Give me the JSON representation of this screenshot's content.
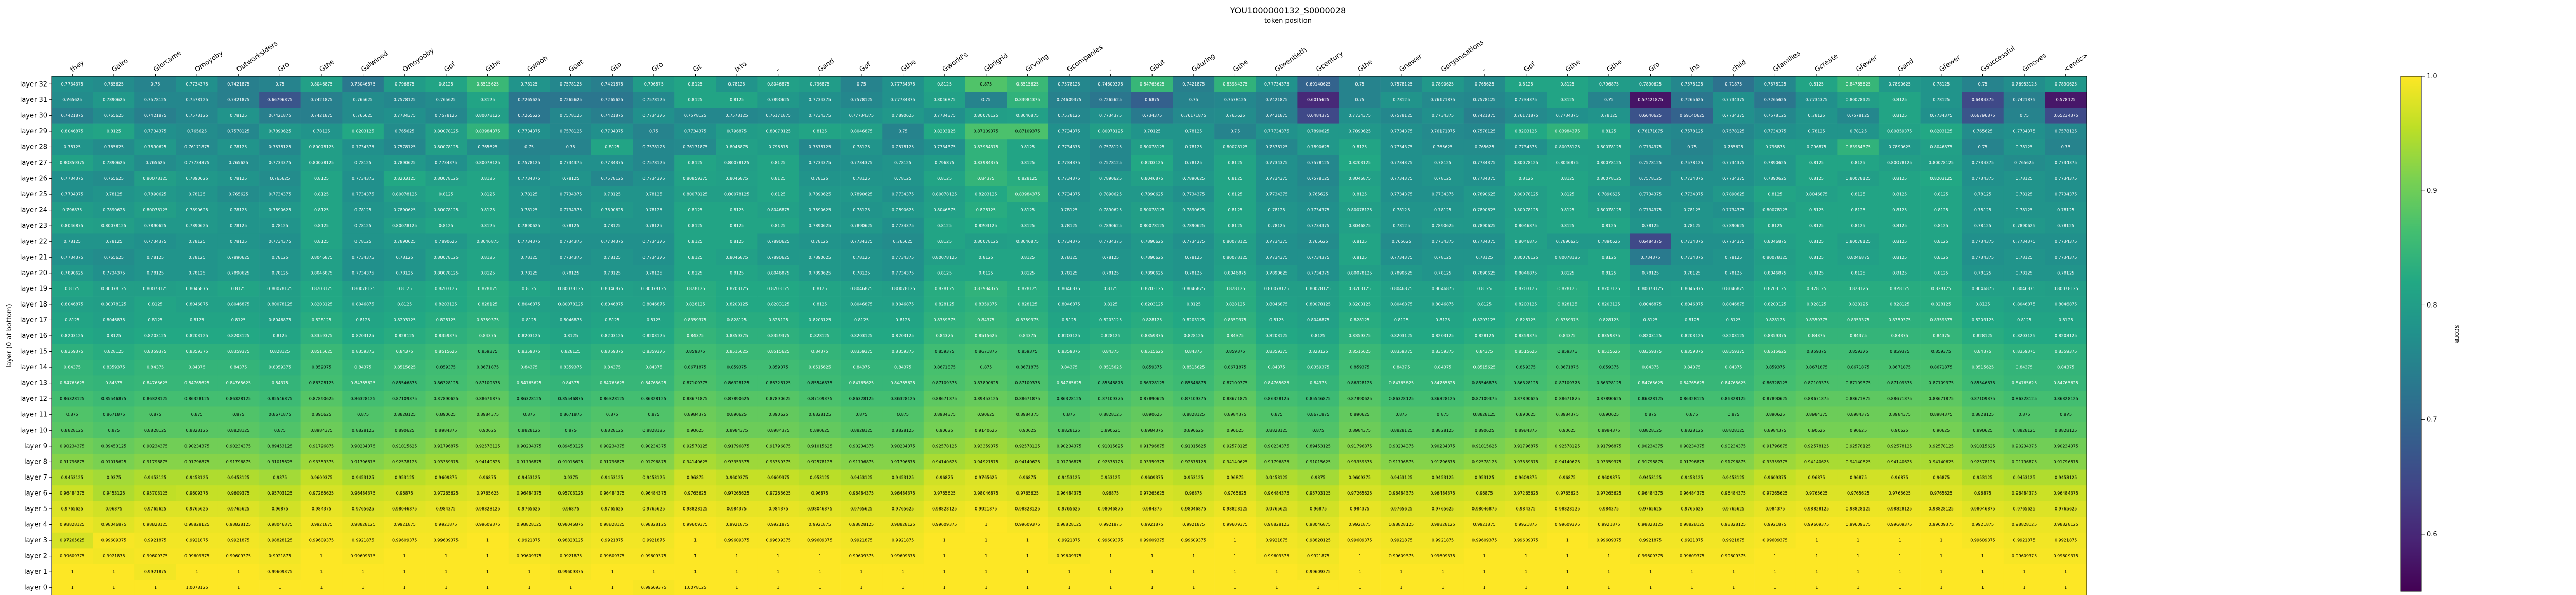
{
  "chart_data": {
    "type": "heatmap",
    "title": "YOU1000000132_S0000028",
    "xlabel": "token position",
    "ylabel": "layer (0 at bottom)",
    "colorbar_label": "score",
    "colormap": "viridis",
    "vmin": 0.55,
    "vmax": 1.0,
    "colorbar_ticks": [
      0.6,
      0.7,
      0.8,
      0.9,
      1.0
    ],
    "x_tokens": [
      "they",
      "Galro",
      "Glorcame",
      "Omoyoby",
      "Outworksiders",
      "Gro",
      "Gthe",
      "Galwined",
      "Omoyooby",
      "Gof",
      "Gthe",
      "Gwaoh",
      "Goet",
      "Gto",
      "Gro",
      "Gt",
      "Ixto",
      "-",
      "Gand",
      "Gof",
      "Gthe",
      "Gworld's",
      "Gbrigrid",
      "Grvoing",
      "Gcompanies",
      "-",
      "Gbut",
      "Gduring",
      "Gthe",
      "Gtwentieth",
      "Gcentury",
      "Gthe",
      "Gnewer",
      "Gorganisations",
      "-",
      "Gof",
      "Gthe",
      "Gthe",
      "Gro",
      "Ins",
      "child",
      "Gfamilies",
      "Gcreate",
      "Gfewer",
      "Gand",
      "Gfewer",
      "Gsuccessful",
      "Gmoves",
      "<endc>"
    ],
    "y_layers": [
      "layer 32",
      "layer 31",
      "layer 30",
      "layer 29",
      "layer 28",
      "layer 27",
      "layer 26",
      "layer 25",
      "layer 24",
      "layer 23",
      "layer 22",
      "layer 21",
      "layer 20",
      "layer 19",
      "layer 18",
      "layer 17",
      "layer 16",
      "layer 15",
      "layer 14",
      "layer 13",
      "layer 12",
      "layer 11",
      "layer 10",
      "layer 9",
      "layer 8",
      "layer 7",
      "layer 6",
      "layer 5",
      "layer 4",
      "layer 3",
      "layer 2",
      "layer 1",
      "layer 0"
    ],
    "row_data": [
      "0.7734375 0.765625 0.75 0.7734375 0.7421875 0.75 0.8046875 0.73046875 0.796875 0.8125 0.8515625 0.78125 0.7578125 0.7421875 0.796875 0.8125 0.78125 0.8046875 0.796875 0.75 0.77734375 0.8125 0.875 0.8515625 0.7578125 0.74609375 0.84765625 0.7421875 0.83984375 0.77734375 0.69140625 0.75 0.7578125 0.7890625 0.765625 0.8125 0.8125 0.796875 0.7890625 0.7578125 0.71875 0.7578125 0.8125 0.84765625 0.7890625 0.78125 0.75 0.76953125 0.7890625",
      "0.765625 0.7890625 0.7578125 0.7578125 0.7421875 0.66796875 0.7421875 0.765625 0.7578125 0.765625 0.8125 0.7265625 0.7265625 0.7265625 0.7578125 0.8125 0.8125 0.7890625 0.7734375 0.7578125 0.77734375 0.8046875 0.75 0.83984375 0.74609375 0.7265625 0.6875 0.75 0.7578125 0.7421875 0.6015625 0.75 0.78125 0.76171875 0.7578125 0.7734375 0.8125 0.75 0.57421875 0.7265625 0.7734375 0.7265625 0.7734375 0.80078125 0.8125 0.78125 0.6484375 0.7421875 0.578125",
      "0.7421875 0.765625 0.7421875 0.7578125 0.78125 0.7421875 0.7421875 0.765625 0.7734375 0.7578125 0.80078125 0.7265625 0.7578125 0.7421875 0.7734375 0.7578125 0.7578125 0.76171875 0.7734375 0.77734375 0.7890625 0.7734375 0.80078125 0.8046875 0.7578125 0.7734375 0.734375 0.76171875 0.765625 0.7421875 0.6484375 0.7734375 0.7578125 0.7734375 0.7421875 0.76171875 0.7734375 0.78125 0.6640625 0.69140625 0.7734375 0.7578125 0.78125 0.7578125 0.8125 0.7734375 0.66796875 0.75 0.65234375",
      "0.8046875 0.8125 0.7734375 0.765625 0.7578125 0.7890625 0.78125 0.8203125 0.765625 0.80078125 0.83984375 0.7734375 0.7578125 0.7734375 0.75 0.7734375 0.796875 0.80078125 0.8125 0.8046875 0.75 0.8203125 0.87109375 0.87109375 0.7734375 0.80078125 0.78125 0.78125 0.75 0.77734375 0.7890625 0.7890625 0.7734375 0.76171875 0.7578125 0.8203125 0.83984375 0.8125 0.76171875 0.7578125 0.7578125 0.7734375 0.78125 0.78125 0.80859375 0.8203125 0.765625 0.7734375 0.7578125",
      "0.78125 0.765625 0.7890625 0.76171875 0.78125 0.7578125 0.80078125 0.7734375 0.7578125 0.80078125 0.765625 0.75 0.75 0.8125 0.7578125 0.76171875 0.8046875 0.796875 0.7578125 0.78125 0.7578125 0.7734375 0.83984375 0.8125 0.7734375 0.7578125 0.80078125 0.78125 0.80078125 0.7578125 0.7890625 0.8125 0.7734375 0.765625 0.765625 0.7734375 0.80078125 0.80078125 0.7734375 0.75 0.765625 0.796875 0.796875 0.83984375 0.7890625 0.8046875 0.75 0.78125 0.75",
      "0.80859375 0.7890625 0.765625 0.77734375 0.765625 0.7734375 0.80078125 0.78125 0.7890625 0.7734375 0.80078125 0.7578125 0.7734375 0.7734375 0.7578125 0.8125 0.80078125 0.8125 0.7734375 0.7734375 0.78125 0.796875 0.83984375 0.8125 0.7734375 0.7578125 0.8203125 0.78125 0.8125 0.7734375 0.7578125 0.8203125 0.7734375 0.78125 0.7734375 0.80078125 0.8046875 0.80078125 0.7578125 0.7578125 0.7734375 0.7890625 0.8125 0.8125 0.80078125 0.80078125 0.7734375 0.765625 0.7734375",
      "0.7734375 0.765625 0.80078125 0.7890625 0.78125 0.765625 0.8125 0.7734375 0.8203125 0.80078125 0.8125 0.7734375 0.78125 0.7578125 0.7734375 0.80859375 0.8046875 0.8125 0.78125 0.78125 0.78125 0.8125 0.84375 0.828125 0.7734375 0.7890625 0.8046875 0.7890625 0.8125 0.7734375 0.7578125 0.8046875 0.7734375 0.78125 0.7734375 0.8125 0.8125 0.80078125 0.7578125 0.7734375 0.7734375 0.7890625 0.8125 0.80078125 0.8125 0.8203125 0.7734375 0.78125 0.7734375",
      "0.7734375 0.78125 0.7890625 0.78125 0.765625 0.7734375 0.8125 0.7734375 0.80078125 0.8125 0.8125 0.78125 0.7734375 0.78125 0.78125 0.80078125 0.80078125 0.8125 0.7890625 0.7890625 0.7734375 0.80078125 0.8203125 0.83984375 0.7734375 0.7890625 0.7890625 0.7734375 0.8125 0.7734375 0.765625 0.8125 0.7734375 0.7734375 0.7890625 0.80078125 0.8125 0.7890625 0.7734375 0.7734375 0.7890625 0.8125 0.8046875 0.8125 0.8125 0.8125 0.78125 0.78125 0.7734375",
      "0.796875 0.7890625 0.80078125 0.7890625 0.78125 0.7890625 0.8125 0.78125 0.7890625 0.80078125 0.8125 0.78125 0.7734375 0.7890625 0.78125 0.8125 0.8125 0.8046875 0.7890625 0.78125 0.7890625 0.8046875 0.828125 0.8125 0.78125 0.7890625 0.80078125 0.7890625 0.8125 0.78125 0.7734375 0.80078125 0.78125 0.78125 0.7890625 0.80078125 0.8125 0.80078125 0.7734375 0.78125 0.7734375 0.80078125 0.8125 0.8125 0.8125 0.8125 0.78125 0.78125 0.78125",
      "0.8046875 0.80078125 0.7890625 0.7890625 0.78125 0.78125 0.8125 0.78125 0.80078125 0.8125 0.8125 0.7890625 0.78125 0.78125 0.78125 0.8125 0.8125 0.8125 0.7890625 0.7890625 0.7734375 0.8125 0.8203125 0.8125 0.78125 0.7890625 0.80078125 0.7890625 0.8125 0.78125 0.7734375 0.8046875 0.78125 0.7890625 0.7890625 0.8046875 0.8125 0.8125 0.78125 0.78125 0.7890625 0.8125 0.8125 0.8125 0.8125 0.8125 0.78125 0.7890625 0.78125",
      "0.78125 0.78125 0.7734375 0.78125 0.78125 0.7734375 0.8125 0.78125 0.7890625 0.7890625 0.8046875 0.7734375 0.7734375 0.7734375 0.7734375 0.8125 0.8125 0.7890625 0.78125 0.7734375 0.765625 0.8125 0.80078125 0.8046875 0.7734375 0.7734375 0.7890625 0.7734375 0.80078125 0.7734375 0.765625 0.8125 0.765625 0.7734375 0.7734375 0.8046875 0.7890625 0.7890625 0.6484375 0.7734375 0.7734375 0.8046875 0.8125 0.80078125 0.8125 0.8125 0.7734375 0.7734375 0.7734375",
      "0.7734375 0.765625 0.78125 0.78125 0.7890625 0.78125 0.8046875 0.7734375 0.78125 0.80078125 0.8125 0.78125 0.7734375 0.78125 0.7734375 0.8125 0.8046875 0.7890625 0.7890625 0.78125 0.7734375 0.80078125 0.8125 0.8125 0.78125 0.78125 0.7890625 0.78125 0.80078125 0.7734375 0.7734375 0.8125 0.7734375 0.78125 0.78125 0.80078125 0.80078125 0.8125 0.734375 0.7734375 0.78125 0.80078125 0.8125 0.8046875 0.8125 0.8125 0.7734375 0.78125 0.7734375",
      "0.7890625 0.7734375 0.78125 0.78125 0.7890625 0.78125 0.8046875 0.7734375 0.78125 0.80078125 0.8125 0.78125 0.78125 0.78125 0.78125 0.8125 0.8125 0.8046875 0.7890625 0.78125 0.7734375 0.8125 0.8125 0.8125 0.78125 0.78125 0.7890625 0.78125 0.8046875 0.7890625 0.7734375 0.80078125 0.7890625 0.78125 0.7890625 0.8046875 0.8125 0.8125 0.78125 0.78125 0.78125 0.8046875 0.8125 0.8125 0.8125 0.8125 0.78125 0.78125 0.78125",
      "0.8125 0.80078125 0.80078125 0.8046875 0.8125 0.80078125 0.8203125 0.80078125 0.8125 0.8203125 0.828125 0.8125 0.80078125 0.8046875 0.80078125 0.828125 0.8203125 0.8203125 0.8125 0.8046875 0.80078125 0.828125 0.83984375 0.828125 0.8046875 0.8125 0.8203125 0.8046875 0.828125 0.80078125 0.80078125 0.8203125 0.8046875 0.8046875 0.8125 0.8203125 0.828125 0.8203125 0.80078125 0.8046875 0.8046875 0.8203125 0.828125 0.828125 0.828125 0.828125 0.8046875 0.8046875 0.80078125",
      "0.8046875 0.80078125 0.8125 0.8046875 0.8046875 0.80078125 0.8203125 0.8046875 0.8125 0.8203125 0.828125 0.8046875 0.80078125 0.8046875 0.8046875 0.828125 0.8203125 0.8203125 0.8125 0.8046875 0.8046875 0.828125 0.8359375 0.828125 0.8046875 0.8125 0.8203125 0.8125 0.828125 0.8046875 0.80078125 0.8203125 0.8046875 0.8046875 0.8125 0.8203125 0.828125 0.8203125 0.8046875 0.8046875 0.8046875 0.8203125 0.828125 0.828125 0.828125 0.828125 0.8125 0.8046875 0.8046875",
      "0.8125 0.8046875 0.8125 0.8125 0.8125 0.8046875 0.828125 0.8125 0.8203125 0.828125 0.8359375 0.8125 0.8046875 0.8125 0.8125 0.8359375 0.828125 0.828125 0.8203125 0.8125 0.8125 0.8359375 0.84375 0.8359375 0.8125 0.8203125 0.828125 0.8203125 0.8359375 0.8125 0.8046875 0.828125 0.8125 0.8125 0.8203125 0.828125 0.8359375 0.828125 0.8125 0.8125 0.8125 0.828125 0.8359375 0.8359375 0.8359375 0.8359375 0.8203125 0.8125 0.8125",
      "0.8203125 0.8125 0.8203125 0.8203125 0.8203125 0.8125 0.8359375 0.8203125 0.828125 0.8359375 0.84375 0.8203125 0.8125 0.8203125 0.8203125 0.84375 0.8359375 0.8359375 0.828125 0.8203125 0.8203125 0.84375 0.8515625 0.84375 0.8203125 0.828125 0.8359375 0.828125 0.84375 0.8203125 0.8125 0.8359375 0.8203125 0.8203125 0.828125 0.8359375 0.84375 0.8359375 0.8203125 0.8203125 0.8203125 0.8359375 0.84375 0.84375 0.84375 0.84375 0.828125 0.8203125 0.8203125",
      "0.8359375 0.828125 0.8359375 0.8359375 0.8359375 0.828125 0.8515625 0.8359375 0.84375 0.8515625 0.859375 0.8359375 0.828125 0.8359375 0.8359375 0.859375 0.8515625 0.8515625 0.84375 0.8359375 0.8359375 0.859375 0.8671875 0.859375 0.8359375 0.84375 0.8515625 0.84375 0.859375 0.8359375 0.828125 0.8515625 0.8359375 0.8359375 0.84375 0.8515625 0.859375 0.8515625 0.8359375 0.8359375 0.8359375 0.8515625 0.859375 0.859375 0.859375 0.859375 0.84375 0.8359375 0.8359375",
      "0.84375 0.8359375 0.84375 0.84375 0.84375 0.8359375 0.859375 0.84375 0.8515625 0.859375 0.8671875 0.84375 0.8359375 0.84375 0.84375 0.8671875 0.859375 0.859375 0.8515625 0.84375 0.84375 0.8671875 0.875 0.8671875 0.84375 0.8515625 0.859375 0.8515625 0.8671875 0.84375 0.8359375 0.859375 0.84375 0.84375 0.8515625 0.859375 0.8671875 0.859375 0.84375 0.84375 0.84375 0.859375 0.8671875 0.8671875 0.8671875 0.8671875 0.8515625 0.84375 0.84375",
      "0.84765625 0.84375 0.84765625 0.84765625 0.84765625 0.84375 0.86328125 0.84765625 0.85546875 0.86328125 0.87109375 0.84765625 0.84375 0.84765625 0.84765625 0.87109375 0.86328125 0.86328125 0.85546875 0.84765625 0.84765625 0.87109375 0.87890625 0.87109375 0.84765625 0.85546875 0.86328125 0.85546875 0.87109375 0.84765625 0.84375 0.86328125 0.84765625 0.84765625 0.85546875 0.86328125 0.87109375 0.86328125 0.84765625 0.84765625 0.84765625 0.86328125 0.87109375 0.87109375 0.87109375 0.87109375 0.85546875 0.84765625 0.84765625",
      "0.86328125 0.85546875 0.86328125 0.86328125 0.86328125 0.85546875 0.87890625 0.86328125 0.87109375 0.87890625 0.88671875 0.86328125 0.85546875 0.86328125 0.86328125 0.88671875 0.87890625 0.87890625 0.87109375 0.86328125 0.86328125 0.88671875 0.89453125 0.88671875 0.86328125 0.87109375 0.87890625 0.87109375 0.88671875 0.86328125 0.85546875 0.87890625 0.86328125 0.86328125 0.87109375 0.87890625 0.88671875 0.87890625 0.86328125 0.86328125 0.86328125 0.87890625 0.88671875 0.88671875 0.88671875 0.88671875 0.87109375 0.86328125 0.86328125",
      "0.875 0.8671875 0.875 0.875 0.875 0.8671875 0.890625 0.875 0.8828125 0.890625 0.8984375 0.875 0.8671875 0.875 0.875 0.8984375 0.890625 0.890625 0.8828125 0.875 0.875 0.8984375 0.90625 0.8984375 0.875 0.8828125 0.890625 0.8828125 0.8984375 0.875 0.8671875 0.890625 0.875 0.875 0.8828125 0.890625 0.8984375 0.890625 0.875 0.875 0.875 0.890625 0.8984375 0.8984375 0.8984375 0.8984375 0.8828125 0.875 0.875",
      "0.8828125 0.875 0.8828125 0.8828125 0.8828125 0.875 0.8984375 0.8828125 0.890625 0.8984375 0.90625 0.8828125 0.875 0.8828125 0.8828125 0.90625 0.8984375 0.8984375 0.890625 0.8828125 0.8828125 0.90625 0.9140625 0.90625 0.8828125 0.890625 0.8984375 0.890625 0.90625 0.8828125 0.875 0.8984375 0.8828125 0.8828125 0.890625 0.8984375 0.90625 0.8984375 0.8828125 0.8828125 0.8828125 0.8984375 0.90625 0.90625 0.90625 0.90625 0.890625 0.8828125 0.8828125",
      "0.90234375 0.89453125 0.90234375 0.90234375 0.90234375 0.89453125 0.91796875 0.90234375 0.91015625 0.91796875 0.92578125 0.90234375 0.89453125 0.90234375 0.90234375 0.92578125 0.91796875 0.91796875 0.91015625 0.90234375 0.90234375 0.92578125 0.93359375 0.92578125 0.90234375 0.91015625 0.91796875 0.91015625 0.92578125 0.90234375 0.89453125 0.91796875 0.90234375 0.90234375 0.91015625 0.91796875 0.92578125 0.91796875 0.90234375 0.90234375 0.90234375 0.91796875 0.92578125 0.92578125 0.92578125 0.92578125 0.91015625 0.90234375 0.90234375",
      "0.91796875 0.91015625 0.91796875 0.91796875 0.91796875 0.91015625 0.93359375 0.91796875 0.92578125 0.93359375 0.94140625 0.91796875 0.91015625 0.91796875 0.91796875 0.94140625 0.93359375 0.93359375 0.92578125 0.91796875 0.91796875 0.94140625 0.94921875 0.94140625 0.91796875 0.92578125 0.93359375 0.92578125 0.94140625 0.91796875 0.91015625 0.93359375 0.91796875 0.91796875 0.92578125 0.93359375 0.94140625 0.93359375 0.91796875 0.91796875 0.91796875 0.93359375 0.94140625 0.94140625 0.94140625 0.94140625 0.92578125 0.91796875 0.91796875",
      "0.9453125 0.9375 0.9453125 0.9453125 0.9453125 0.9375 0.9609375 0.9453125 0.953125 0.9609375 0.96875 0.9453125 0.9375 0.9453125 0.9453125 0.96875 0.9609375 0.9609375 0.953125 0.9453125 0.9453125 0.96875 0.9765625 0.96875 0.9453125 0.953125 0.9609375 0.953125 0.96875 0.9453125 0.9375 0.9609375 0.9453125 0.9453125 0.953125 0.9609375 0.96875 0.9609375 0.9453125 0.9453125 0.9453125 0.9609375 0.96875 0.96875 0.96875 0.96875 0.953125 0.9453125 0.9453125",
      "0.96484375 0.9453125 0.95703125 0.9609375 0.9609375 0.95703125 0.97265625 0.96484375 0.96875 0.97265625 0.9765625 0.96484375 0.95703125 0.96484375 0.96484375 0.9765625 0.97265625 0.97265625 0.96875 0.96484375 0.96484375 0.9765625 0.98046875 0.9765625 0.96484375 0.96875 0.97265625 0.96875 0.9765625 0.96484375 0.95703125 0.97265625 0.96484375 0.96484375 0.96875 0.97265625 0.9765625 0.97265625 0.96484375 0.96484375 0.96484375 0.97265625 0.9765625 0.9765625 0.9765625 0.9765625 0.96875 0.96484375 0.96484375",
      "0.9765625 0.96875 0.9765625 0.9765625 0.9765625 0.96875 0.984375 0.9765625 0.98046875 0.984375 0.98828125 0.9765625 0.96875 0.9765625 0.9765625 0.98828125 0.984375 0.984375 0.98046875 0.9765625 0.9765625 0.98828125 0.9921875 0.98828125 0.9765625 0.98046875 0.984375 0.98046875 0.98828125 0.9765625 0.96875 0.984375 0.9765625 0.9765625 0.98046875 0.984375 0.98828125 0.984375 0.9765625 0.9765625 0.9765625 0.984375 0.98828125 0.98828125 0.98828125 0.98828125 0.98046875 0.9765625 0.9765625",
      "0.98828125 0.98046875 0.98828125 0.98828125 0.98828125 0.98046875 0.9921875 0.98828125 0.9921875 0.9921875 0.99609375 0.98828125 0.98046875 0.98828125 0.98828125 0.99609375 0.9921875 0.9921875 0.9921875 0.98828125 0.98828125 0.99609375 1.0 0.99609375 0.98828125 0.9921875 0.9921875 0.9921875 0.99609375 0.98828125 0.98046875 0.9921875 0.98828125 0.98828125 0.9921875 0.9921875 0.99609375 0.9921875 0.98828125 0.98828125 0.98828125 0.9921875 0.99609375 0.99609375 0.99609375 0.99609375 0.9921875 0.98828125 0.98828125",
      "0.97265625 0.99609375 0.9921875 0.9921875 0.9921875 0.98828125 0.99609375 0.9921875 0.99609375 0.99609375 1.0 0.9921875 0.98828125 0.9921875 0.9921875 1.0 0.99609375 0.99609375 0.99609375 0.9921875 0.9921875 1.0 1.0 1.0 0.9921875 0.99609375 0.99609375 0.99609375 1.0 0.9921875 0.98828125 0.99609375 0.9921875 0.9921875 0.99609375 0.99609375 1.0 0.99609375 0.9921875 0.9921875 0.9921875 0.99609375 1.0 1.0 1.0 1.0 0.99609375 0.9921875 0.9921875",
      "0.99609375 0.9921875 0.99609375 0.99609375 0.99609375 0.9921875 1.0 0.99609375 1.0 1.0 1.0 0.99609375 0.9921875 0.99609375 0.99609375 1.0 1.0 1.0 1.0 0.99609375 0.99609375 1.0 1.0 1.0 0.99609375 1.0 1.0 1.0 1.0 0.99609375 0.9921875 1.0 0.99609375 0.99609375 1.0 1.0 1.0 1.0 0.99609375 0.99609375 0.99609375 1.0 1.0 1.0 1.0 1.0 1.0 0.99609375 0.99609375",
      "1.0 1.0 0.9921875 1.0 1.0 0.99609375 1.0 1.0 1.0 1.0 1.0 1.0 0.99609375 1.0 1.0 1.0 1.0 1.0 1.0 1.0 1.0 1.0 1.0 1.0 1.0 1.0 1.0 1.0 1.0 1.0 0.99609375 1.0 1.0 1.0 1.0 1.0 1.0 1.0 1.0 1.0 1.0 1.0 1.0 1.0 1.0 1.0 1.0 1.0 1.0",
      "1.0 1.0 1.0 1.0078125 1.0 1.0 1.0 1.0 1.0 1.0 1.0 1.0 1.0 1.0 0.99609375 1.0078125 1.0 1.0 1.0 1.0 1.0 1.0 1.0 1.0 1.0 1.0 1.0 1.0 1.0 1.0 1.0 1.0 1.0 1.0 1.0 1.0 1.0 1.0 1.0 1.0 1.0 1.0 1.0 1.0 1.0 1.0 1.0 1.0 1.0"
    ]
  }
}
